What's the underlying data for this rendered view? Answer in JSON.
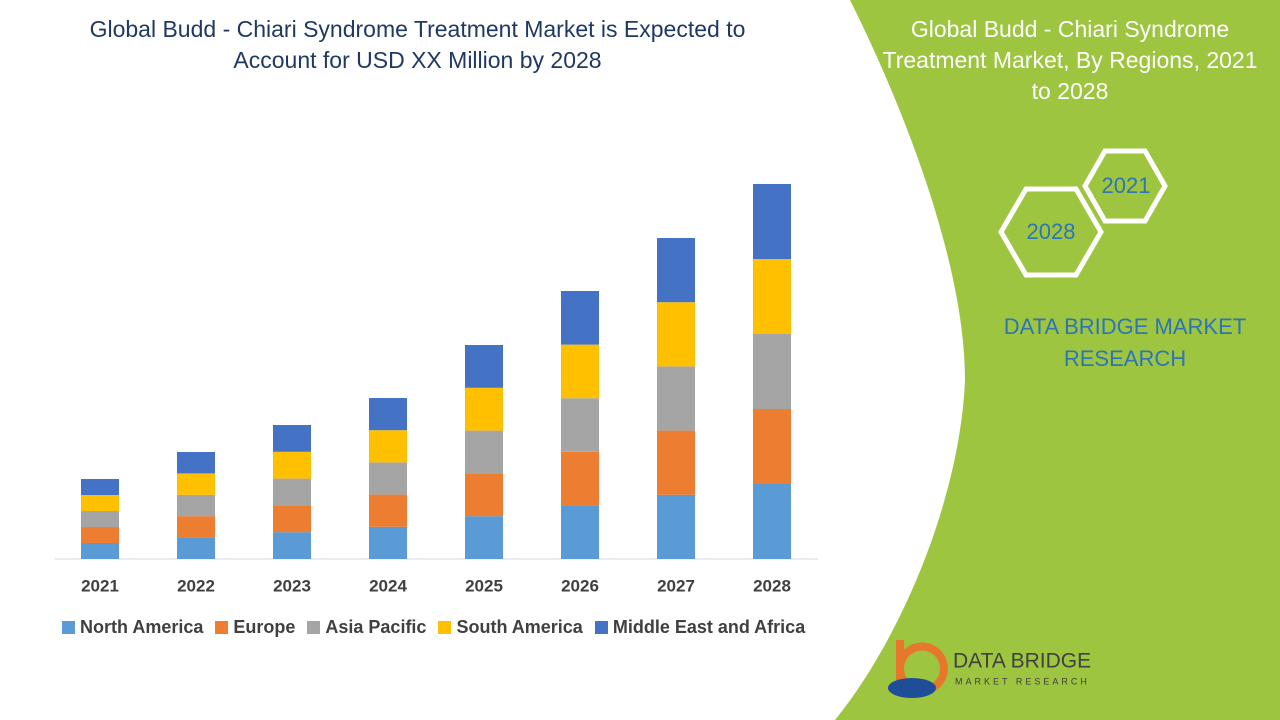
{
  "chart_data": {
    "type": "bar",
    "stacked": true,
    "title": "Global Budd - Chiari Syndrome Treatment Market is Expected to Account for USD XX Million by 2028",
    "categories": [
      "2021",
      "2022",
      "2023",
      "2024",
      "2025",
      "2026",
      "2027",
      "2028"
    ],
    "series": [
      {
        "name": "North America",
        "color": "#5b9bd5",
        "values": [
          16,
          21.4,
          26.8,
          32.2,
          42.8,
          53.6,
          64.2,
          75
        ]
      },
      {
        "name": "Europe",
        "color": "#ed7d31",
        "values": [
          16,
          21.4,
          26.8,
          32.2,
          42.8,
          53.6,
          64.2,
          75
        ]
      },
      {
        "name": "Asia Pacific",
        "color": "#a5a5a5",
        "values": [
          16,
          21.4,
          26.8,
          32.2,
          42.8,
          53.6,
          64.2,
          75
        ]
      },
      {
        "name": "South America",
        "color": "#ffc000",
        "values": [
          16,
          21.4,
          26.8,
          32.2,
          42.8,
          53.6,
          64.2,
          75
        ]
      },
      {
        "name": "Middle East and Africa",
        "color": "#4472c4",
        "values": [
          16,
          21.4,
          26.8,
          32.2,
          42.8,
          53.6,
          64.2,
          75
        ]
      }
    ]
  },
  "side_panel": {
    "title": "Global Budd - Chiari Syndrome Treatment Market, By Regions, 2021 to 2028",
    "hexagons": [
      "2021",
      "2028"
    ],
    "brand": "DATA BRIDGE MARKET RESEARCH"
  },
  "logo": {
    "name": "DATA BRIDGE",
    "tagline": "MARKET RESEARCH"
  }
}
